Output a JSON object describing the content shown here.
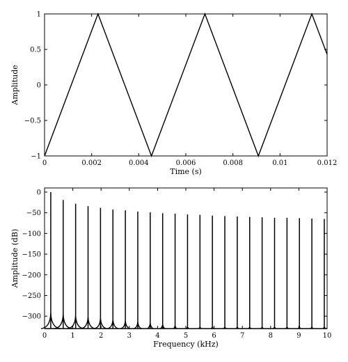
{
  "chart_data": [
    {
      "type": "line",
      "title": "",
      "xlabel": "Time (s)",
      "ylabel": "Amplitude",
      "xlim": [
        0,
        0.012
      ],
      "ylim": [
        -1,
        1
      ],
      "x_ticks": [
        0,
        0.002,
        0.004,
        0.006,
        0.008,
        0.01,
        0.012
      ],
      "x_tick_labels": [
        "0",
        "0.002",
        "0.004",
        "0.006",
        "0.008",
        "0.01",
        "0.012"
      ],
      "y_ticks": [
        -1,
        -0.5,
        0,
        0.5,
        1
      ],
      "y_tick_labels": [
        "−1",
        "−0.5",
        "0",
        "0.5",
        "1"
      ],
      "grid": false,
      "series": [
        {
          "x": [
            0,
            0.00227,
            0.00454,
            0.00681,
            0.00908,
            0.01135,
            0.012
          ],
          "y": [
            -1,
            1,
            -1,
            1,
            -1,
            1,
            0.43
          ]
        }
      ]
    },
    {
      "type": "line",
      "title": "",
      "xlabel": "Frequency (kHz)",
      "ylabel": "Amplitude (dB)",
      "xlim": [
        0,
        10
      ],
      "ylim": [
        -330,
        10
      ],
      "x_ticks": [
        0,
        1,
        2,
        3,
        4,
        5,
        6,
        7,
        8,
        9,
        10
      ],
      "x_tick_labels": [
        "0",
        "1",
        "2",
        "3",
        "4",
        "5",
        "6",
        "7",
        "8",
        "9",
        "10"
      ],
      "y_ticks": [
        0,
        -50,
        -100,
        -150,
        -200,
        -250,
        -300
      ],
      "y_tick_labels": [
        "0",
        "−50",
        "−100",
        "−150",
        "−200",
        "−250",
        "−300"
      ],
      "grid": false,
      "series": [
        {
          "harmonic_freq_khz": [
            0.22,
            0.66,
            1.1,
            1.54,
            1.98,
            2.42,
            2.86,
            3.3,
            3.74,
            4.18,
            4.62,
            5.06,
            5.5,
            5.94,
            6.38,
            6.82,
            7.26,
            7.7,
            8.14,
            8.58,
            9.02,
            9.46,
            9.9
          ],
          "peak_db": [
            0,
            -19,
            -28,
            -34,
            -38,
            -42,
            -44,
            -47,
            -49,
            -51,
            -52,
            -54,
            -55,
            -57,
            -58,
            -59,
            -60,
            -61,
            -62,
            -62,
            -63,
            -64,
            -65
          ],
          "floor_db": -330
        }
      ]
    }
  ]
}
